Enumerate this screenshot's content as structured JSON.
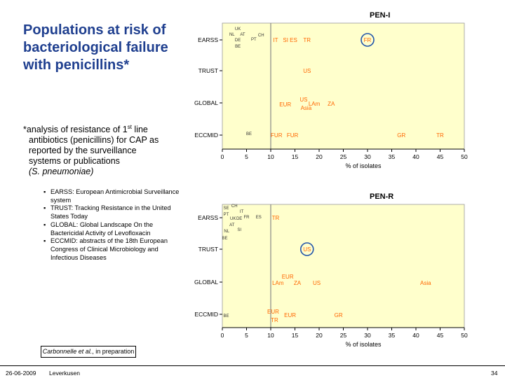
{
  "title": "Populations at risk of bacteriological failure with penicillins*",
  "note": {
    "line1_pre": "*analysis of resistance of 1",
    "line1_sup": "st",
    "line1_post": " line",
    "line2": "antibiotics (penicillins) for CAP as",
    "line3": "reported by the surveillance",
    "line4": "systems or publications",
    "line5": "(S. pneumoniae)"
  },
  "legend_items": [
    "EARSS: European Antimicrobial Surveillance system",
    "TRUST: Tracking Resistance in the United States Today",
    "GLOBAL: Global Landscape On the Bactericidal Activity of Levofloxacin",
    "ECCMID: abstracts of the 18th European Congress of Clinical Microbiology and Infectious Diseases"
  ],
  "reference": {
    "author": "Carbonnelle et al.",
    "rest": ", in preparation"
  },
  "footer": {
    "date": "26-06-2009",
    "place": "Leverkusen",
    "page": "34"
  },
  "colors": {
    "plot_bg": "#ffffcc",
    "label": "#ff6600",
    "label_dark": "#333333",
    "threshold": "#888888",
    "circle": "#2255aa",
    "title": "#1f3f8f"
  },
  "chart_data": [
    {
      "type": "scatter",
      "title": "PEN-I",
      "xlabel": "% of isolates",
      "xlim": [
        0,
        50
      ],
      "x_ticks": [
        0,
        5,
        10,
        15,
        20,
        25,
        30,
        35,
        40,
        45,
        50
      ],
      "threshold_x": 10,
      "categories": [
        "EARSS",
        "TRUST",
        "GLOBAL",
        "ECCMID"
      ],
      "points": [
        {
          "cat": "EARSS",
          "x": 3.2,
          "dy": -16,
          "label": "UK",
          "small": true
        },
        {
          "cat": "EARSS",
          "x": 2.0,
          "dy": -8,
          "label": "NL",
          "small": true
        },
        {
          "cat": "EARSS",
          "x": 4.2,
          "dy": -8,
          "label": "AT",
          "small": true
        },
        {
          "cat": "EARSS",
          "x": 3.2,
          "dy": 0,
          "label": "DE",
          "small": true
        },
        {
          "cat": "EARSS",
          "x": 3.2,
          "dy": 9,
          "label": "BE",
          "small": true
        },
        {
          "cat": "EARSS",
          "x": 6.5,
          "dy": -1,
          "label": "PT",
          "small": true
        },
        {
          "cat": "EARSS",
          "x": 8.0,
          "dy": -7,
          "label": "CH",
          "small": true
        },
        {
          "cat": "EARSS",
          "x": 11.0,
          "dy": 0,
          "label": "IT"
        },
        {
          "cat": "EARSS",
          "x": 14.0,
          "dy": 0,
          "label": "SI ES"
        },
        {
          "cat": "EARSS",
          "x": 17.5,
          "dy": 0,
          "label": "TR"
        },
        {
          "cat": "EARSS",
          "x": 30.0,
          "dy": 0,
          "label": "FR",
          "circled": true
        },
        {
          "cat": "TRUST",
          "x": 17.5,
          "dy": 0,
          "label": "US"
        },
        {
          "cat": "GLOBAL",
          "x": 13.0,
          "dy": 2,
          "label": "EUR"
        },
        {
          "cat": "GLOBAL",
          "x": 16.8,
          "dy": -5,
          "label": "US"
        },
        {
          "cat": "GLOBAL",
          "x": 17.3,
          "dy": 7,
          "label": "Asia"
        },
        {
          "cat": "GLOBAL",
          "x": 19.0,
          "dy": 1,
          "label": "LAm"
        },
        {
          "cat": "GLOBAL",
          "x": 22.5,
          "dy": 1,
          "label": "ZA"
        },
        {
          "cat": "ECCMID",
          "x": 5.5,
          "dy": -2,
          "label": "BE",
          "small": true
        },
        {
          "cat": "ECCMID",
          "x": 11.2,
          "dy": 0,
          "label": "FUR"
        },
        {
          "cat": "ECCMID",
          "x": 14.5,
          "dy": 0,
          "label": "FUR"
        },
        {
          "cat": "ECCMID",
          "x": 37.0,
          "dy": 0,
          "label": "GR"
        },
        {
          "cat": "ECCMID",
          "x": 45.0,
          "dy": 0,
          "label": "TR"
        }
      ]
    },
    {
      "type": "scatter",
      "title": "PEN-R",
      "xlabel": "% of isolates",
      "xlim": [
        0,
        50
      ],
      "x_ticks": [
        0,
        5,
        10,
        15,
        20,
        25,
        30,
        35,
        40,
        45,
        50
      ],
      "threshold_x": 10,
      "categories": [
        "EARSS",
        "TRUST",
        "GLOBAL",
        "ECCMID"
      ],
      "points": [
        {
          "cat": "EARSS",
          "x": 0.8,
          "dy": -14,
          "label": "SE",
          "small": true
        },
        {
          "cat": "EARSS",
          "x": 2.5,
          "dy": -17,
          "label": "CH",
          "small": true
        },
        {
          "cat": "EARSS",
          "x": 4.0,
          "dy": -9,
          "label": "IT",
          "small": true
        },
        {
          "cat": "EARSS",
          "x": 0.8,
          "dy": -5,
          "label": "PT",
          "small": true
        },
        {
          "cat": "EARSS",
          "x": 2.2,
          "dy": 1,
          "label": "UK",
          "small": true
        },
        {
          "cat": "EARSS",
          "x": 3.5,
          "dy": 1,
          "label": "DE",
          "small": true
        },
        {
          "cat": "EARSS",
          "x": 5.0,
          "dy": -1,
          "label": "FR",
          "small": true
        },
        {
          "cat": "EARSS",
          "x": 2.0,
          "dy": 10,
          "label": "AT",
          "small": true
        },
        {
          "cat": "EARSS",
          "x": 0.9,
          "dy": 19,
          "label": "NL",
          "small": true
        },
        {
          "cat": "EARSS",
          "x": 3.5,
          "dy": 17,
          "label": "SI",
          "small": true
        },
        {
          "cat": "EARSS",
          "x": 0.5,
          "dy": 29,
          "label": "BE",
          "small": true
        },
        {
          "cat": "EARSS",
          "x": 7.5,
          "dy": -1,
          "label": "ES",
          "small": true
        },
        {
          "cat": "EARSS",
          "x": 11.0,
          "dy": 0,
          "label": "TR"
        },
        {
          "cat": "TRUST",
          "x": 17.5,
          "dy": 0,
          "label": "US",
          "circled": true
        },
        {
          "cat": "GLOBAL",
          "x": 13.5,
          "dy": -8,
          "label": "EUR"
        },
        {
          "cat": "GLOBAL",
          "x": 11.5,
          "dy": 1,
          "label": "LAm"
        },
        {
          "cat": "GLOBAL",
          "x": 15.5,
          "dy": 1,
          "label": "ZA"
        },
        {
          "cat": "GLOBAL",
          "x": 19.5,
          "dy": 1,
          "label": "US"
        },
        {
          "cat": "GLOBAL",
          "x": 42.0,
          "dy": 1,
          "label": "Asia"
        },
        {
          "cat": "ECCMID",
          "x": 0.8,
          "dy": 2,
          "label": "BE",
          "small": true
        },
        {
          "cat": "ECCMID",
          "x": 10.5,
          "dy": -4,
          "label": "EUR"
        },
        {
          "cat": "ECCMID",
          "x": 10.8,
          "dy": 8,
          "label": "TR"
        },
        {
          "cat": "ECCMID",
          "x": 14.0,
          "dy": 1,
          "label": "EUR"
        },
        {
          "cat": "ECCMID",
          "x": 24.0,
          "dy": 1,
          "label": "GR"
        }
      ]
    }
  ]
}
